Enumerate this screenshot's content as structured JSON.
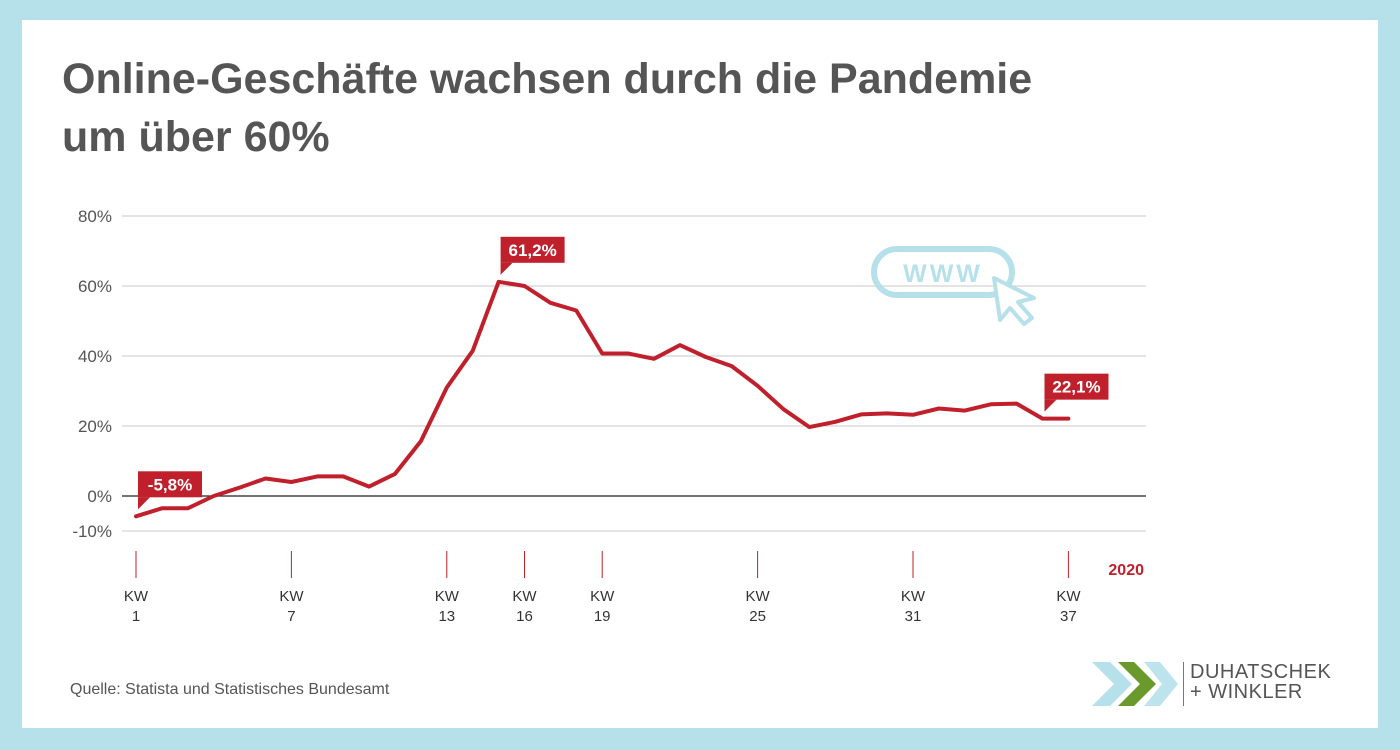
{
  "title_lines": [
    "Online-Geschäfte wachsen durch die Pandemie",
    "um über 60%"
  ],
  "source": "Quelle: Statista und Statistisches Bundesamt",
  "logo": {
    "line1": "DUHATSCHEK",
    "line2": "+ WINKLER"
  },
  "www_icon": {
    "label": "WWW",
    "icon": "www-cursor-icon",
    "color": "#b6e0ea"
  },
  "colors": {
    "line": "#c0202b",
    "accent": "#c0202b",
    "text": "#555555",
    "background": "#b6e0ea"
  },
  "chart_data": {
    "type": "line",
    "year_label": "2020",
    "ylim": [
      -10,
      80
    ],
    "y_ticks": [
      80,
      60,
      40,
      20,
      0,
      -10
    ],
    "y_tick_labels": [
      "80%",
      "60%",
      "40%",
      "20%",
      "0%",
      "-10%"
    ],
    "x_ticks": [
      {
        "week": 1,
        "label1": "KW",
        "label2": "1"
      },
      {
        "week": 7,
        "label1": "KW",
        "label2": "7"
      },
      {
        "week": 13,
        "label1": "KW",
        "label2": "13"
      },
      {
        "week": 16,
        "label1": "KW",
        "label2": "16"
      },
      {
        "week": 19,
        "label1": "KW",
        "label2": "19"
      },
      {
        "week": 25,
        "label1": "KW",
        "label2": "25"
      },
      {
        "week": 31,
        "label1": "KW",
        "label2": "31"
      },
      {
        "week": 37,
        "label1": "KW",
        "label2": "37"
      }
    ],
    "x": [
      1,
      2,
      3,
      4,
      5,
      6,
      7,
      8,
      9,
      10,
      11,
      12,
      13,
      14,
      15,
      16,
      17,
      18,
      19,
      20,
      21,
      22,
      23,
      24,
      25,
      26,
      27,
      28,
      29,
      30,
      31,
      32,
      33,
      34,
      35,
      36,
      37
    ],
    "values": [
      -5.8,
      -3.5,
      -3.5,
      0,
      2.4,
      5,
      4,
      5.6,
      5.6,
      2.7,
      6.3,
      15.7,
      31,
      41.5,
      61.2,
      60,
      55.2,
      53,
      40.7,
      40.7,
      39.2,
      43.1,
      39.7,
      37.1,
      31.5,
      24.8,
      19.7,
      21.2,
      23.3,
      23.6,
      23.2,
      25,
      24.4,
      26.2,
      26.4,
      22.1,
      22.1
    ],
    "annotations": [
      {
        "week": 1,
        "value": -5.8,
        "text": "-5,8%"
      },
      {
        "week": 15,
        "value": 61.2,
        "text": "61,2%"
      },
      {
        "week": 36,
        "value": 22.1,
        "text": "22,1%"
      }
    ]
  }
}
